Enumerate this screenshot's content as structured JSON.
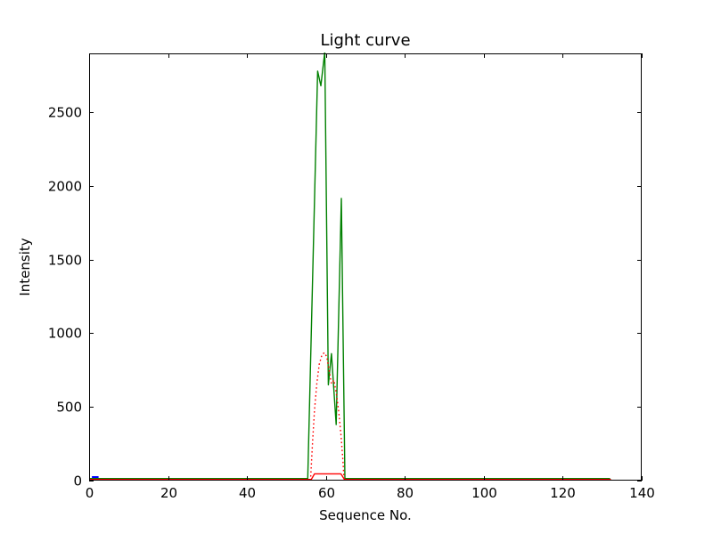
{
  "figure": {
    "background": "#ffffff",
    "border": "none",
    "window_chrome": "none"
  },
  "chart_data": {
    "type": "line",
    "title": "Light curve",
    "xlabel": "Sequence No.",
    "ylabel": "Intensity",
    "xlim": [
      0,
      140
    ],
    "ylim": [
      0,
      2900
    ],
    "xticks": [
      0,
      20,
      40,
      60,
      80,
      100,
      120,
      140
    ],
    "xtick_labels": [
      "0",
      "20",
      "40",
      "60",
      "80",
      "100",
      "120",
      "140"
    ],
    "yticks": [
      0,
      500,
      1000,
      1500,
      2000,
      2500
    ],
    "ytick_labels": [
      "0",
      "500",
      "1000",
      "1500",
      "2000",
      "2500"
    ],
    "grid": false,
    "legend": "none",
    "tick_style": "inward-all-four-spines",
    "spine_color": "#000000",
    "series": [
      {
        "name": "green-solid-main-burst",
        "color": "#008000",
        "style": "solid",
        "linewidth": 1.4,
        "points": [
          [
            0,
            14
          ],
          [
            55.4,
            14
          ],
          [
            57.9,
            2780
          ],
          [
            58.7,
            2680
          ],
          [
            59.7,
            2910
          ],
          [
            60.6,
            650
          ],
          [
            61.4,
            862
          ],
          [
            62.6,
            380
          ],
          [
            63.9,
            1915
          ],
          [
            64.8,
            14
          ],
          [
            132,
            14
          ]
        ]
      },
      {
        "name": "red-dotted-burst-envelope",
        "color": "#ff0000",
        "style": "dotted",
        "linewidth": 1.4,
        "points": [
          [
            56.1,
            0
          ],
          [
            56.6,
            260
          ],
          [
            57.1,
            480
          ],
          [
            57.7,
            660
          ],
          [
            58.3,
            790
          ],
          [
            59.0,
            855
          ],
          [
            59.6,
            868
          ],
          [
            60.2,
            842
          ],
          [
            60.8,
            748
          ],
          [
            61.4,
            658
          ],
          [
            62.0,
            682
          ],
          [
            62.6,
            600
          ],
          [
            63.2,
            478
          ],
          [
            63.8,
            315
          ],
          [
            64.3,
            135
          ],
          [
            64.6,
            0
          ]
        ]
      },
      {
        "name": "red-solid-baseline-bump",
        "color": "#ff0000",
        "style": "solid",
        "linewidth": 1.4,
        "points": [
          [
            0,
            8
          ],
          [
            56.3,
            8
          ],
          [
            57.1,
            46
          ],
          [
            63.8,
            46
          ],
          [
            64.7,
            8
          ],
          [
            132.2,
            8
          ]
        ]
      },
      {
        "name": "blue-leading-segment",
        "color": "#0000ff",
        "style": "solid",
        "linewidth": 2,
        "points": [
          [
            0.7,
            24
          ],
          [
            2.4,
            24
          ]
        ]
      }
    ]
  }
}
